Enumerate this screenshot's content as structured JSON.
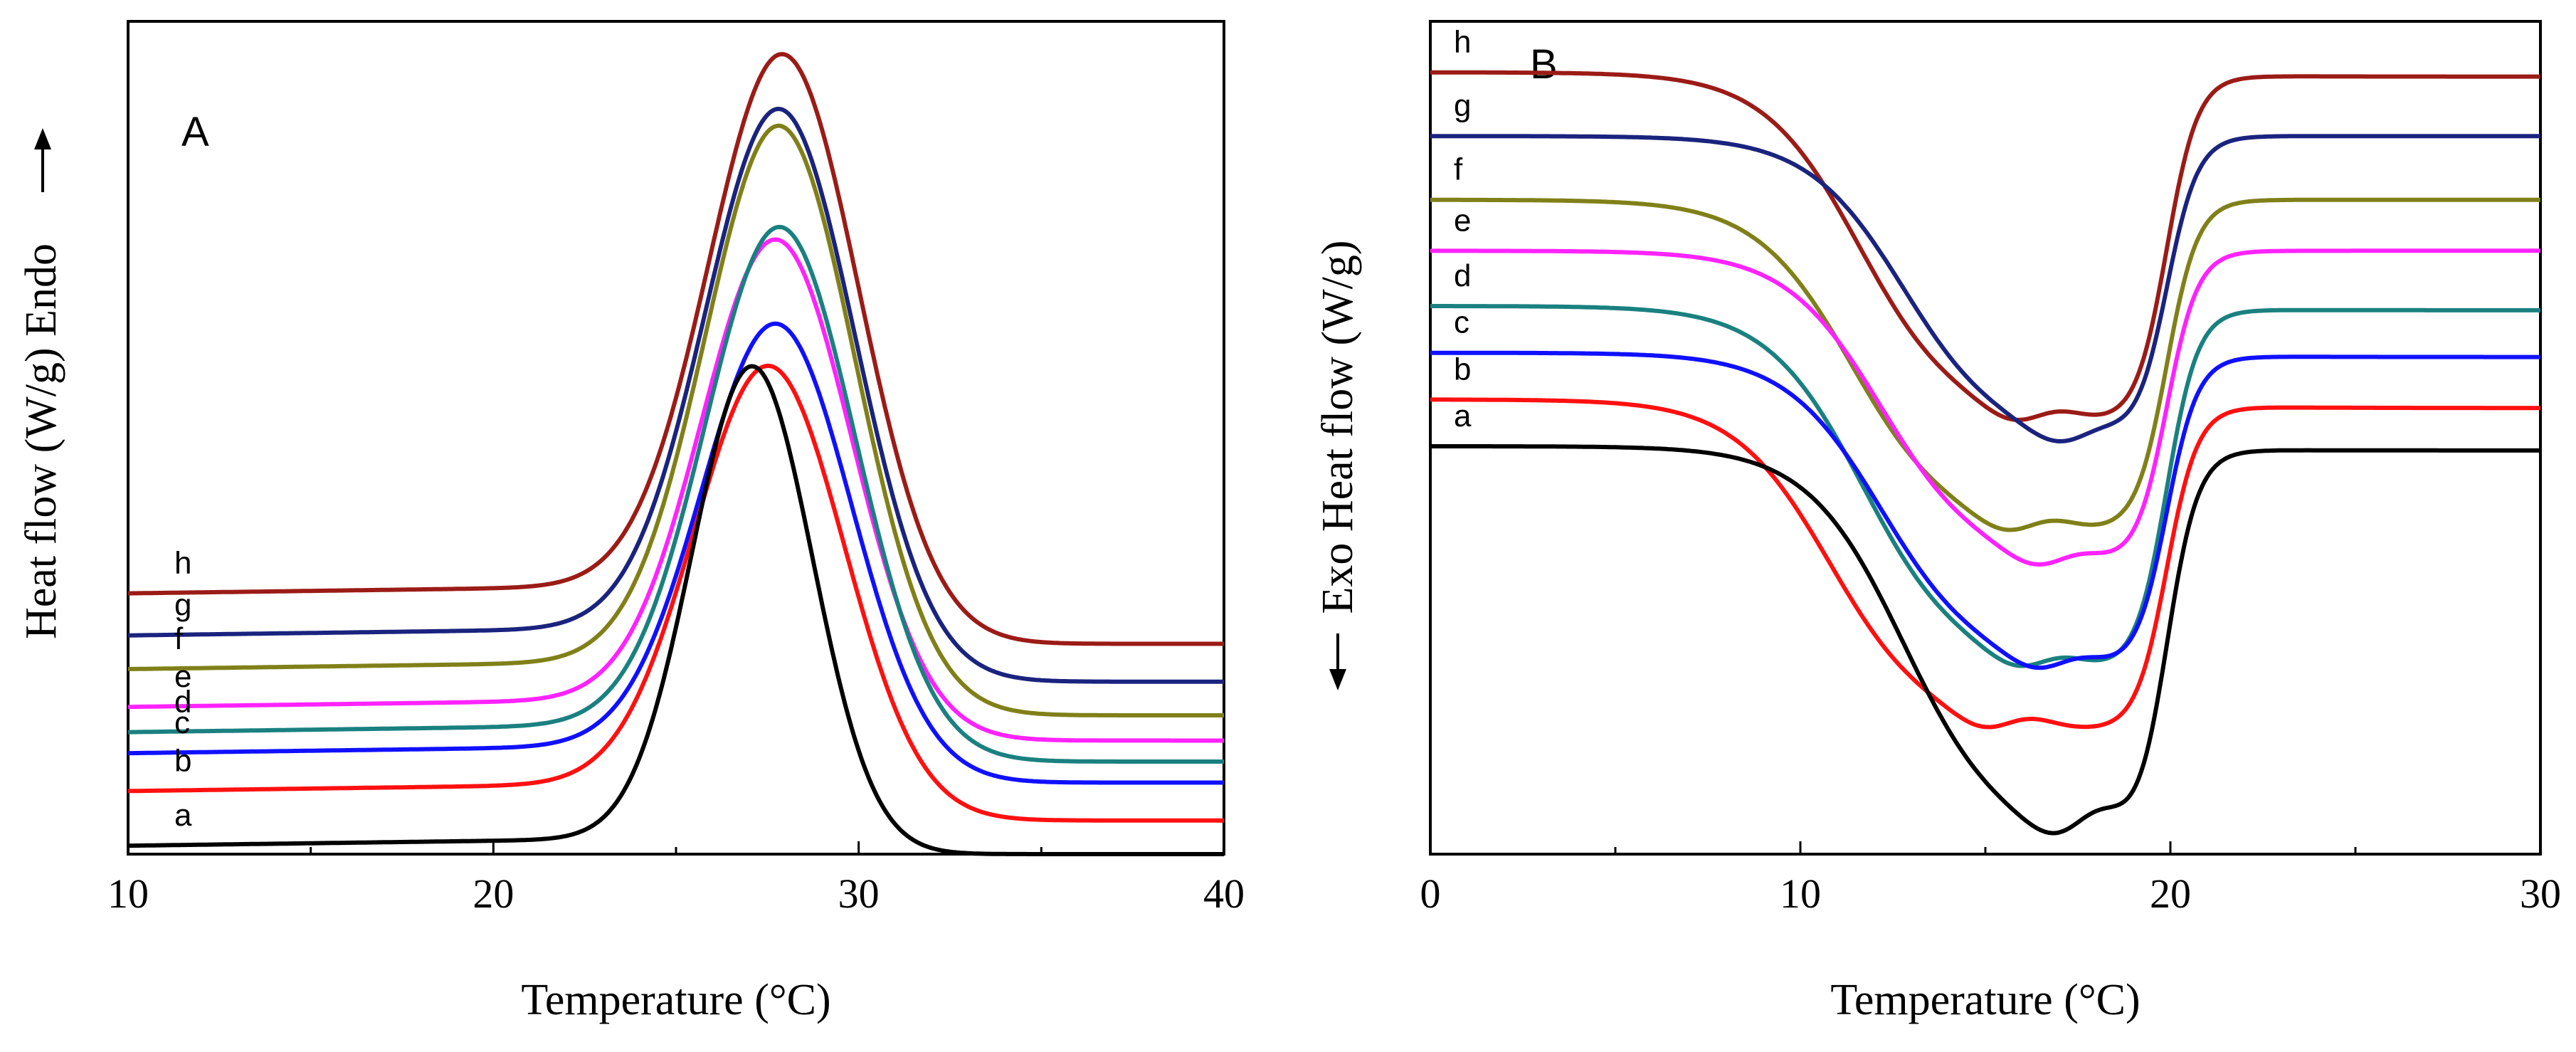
{
  "chart_data": [
    {
      "panel_label": "A",
      "type": "line",
      "xlabel": "Temperature (°C)",
      "ylabel": "Heat flow (W/g)",
      "ylabel_direction": "Endo",
      "xlim": [
        10,
        40
      ],
      "x_ticks": [
        10,
        20,
        30,
        40
      ],
      "y_ticks": [],
      "grid": false,
      "series": [
        {
          "name": "h",
          "color": "#9b1b16",
          "baseline_left": 0.6,
          "baseline_right": 0.48,
          "peak_x": 28.0,
          "peak_y": 1.88
        },
        {
          "name": "g",
          "color": "#1a237e",
          "baseline_left": 0.5,
          "baseline_right": 0.39,
          "peak_x": 27.9,
          "peak_y": 1.75
        },
        {
          "name": "f",
          "color": "#808019",
          "baseline_left": 0.42,
          "baseline_right": 0.31,
          "peak_x": 27.9,
          "peak_y": 1.71
        },
        {
          "name": "e",
          "color": "#ff22ff",
          "baseline_left": 0.33,
          "baseline_right": 0.25,
          "peak_x": 27.8,
          "peak_y": 1.44
        },
        {
          "name": "d",
          "color": "#1a8080",
          "baseline_left": 0.27,
          "baseline_right": 0.2,
          "peak_x": 27.9,
          "peak_y": 1.47
        },
        {
          "name": "c",
          "color": "#1010ff",
          "baseline_left": 0.22,
          "baseline_right": 0.15,
          "peak_x": 27.8,
          "peak_y": 1.24
        },
        {
          "name": "b",
          "color": "#ff1010",
          "baseline_left": 0.13,
          "baseline_right": 0.06,
          "peak_x": 27.6,
          "peak_y": 1.14
        },
        {
          "name": "a",
          "color": "#000000",
          "baseline_left": 0.0,
          "baseline_right": -0.02,
          "peak_x": 27.1,
          "peak_y": 1.14
        }
      ]
    },
    {
      "panel_label": "B",
      "type": "line",
      "xlabel": "Temperature (°C)",
      "ylabel": "Heat flow (W/g)",
      "ylabel_direction": "Exo",
      "xlim": [
        0,
        30
      ],
      "x_ticks": [
        0,
        10,
        20,
        30
      ],
      "y_ticks": [],
      "grid": false,
      "series": [
        {
          "name": "h",
          "color": "#9b1b16",
          "baseline_left": 1.84,
          "baseline_right": 1.83,
          "trough_x": 16.0,
          "trough_y": 1.02
        },
        {
          "name": "g",
          "color": "#1a237e",
          "baseline_left": 1.69,
          "baseline_right": 1.69,
          "trough_x": 17.2,
          "trough_y": 0.97
        },
        {
          "name": "f",
          "color": "#808019",
          "baseline_left": 1.54,
          "baseline_right": 1.54,
          "trough_x": 15.8,
          "trough_y": 0.76
        },
        {
          "name": "e",
          "color": "#ff22ff",
          "baseline_left": 1.42,
          "baseline_right": 1.42,
          "trough_x": 16.6,
          "trough_y": 0.68
        },
        {
          "name": "d",
          "color": "#1a8080",
          "baseline_left": 1.29,
          "baseline_right": 1.28,
          "trough_x": 16.1,
          "trough_y": 0.44
        },
        {
          "name": "c",
          "color": "#1010ff",
          "baseline_left": 1.18,
          "baseline_right": 1.17,
          "trough_x": 16.6,
          "trough_y": 0.44
        },
        {
          "name": "b",
          "color": "#ff1010",
          "baseline_left": 1.07,
          "baseline_right": 1.05,
          "trough_x": 15.2,
          "trough_y": 0.3
        },
        {
          "name": "a",
          "color": "#000000",
          "baseline_left": 0.96,
          "baseline_right": 0.95,
          "trough_x": 17.2,
          "trough_y": 0.03
        }
      ]
    }
  ]
}
